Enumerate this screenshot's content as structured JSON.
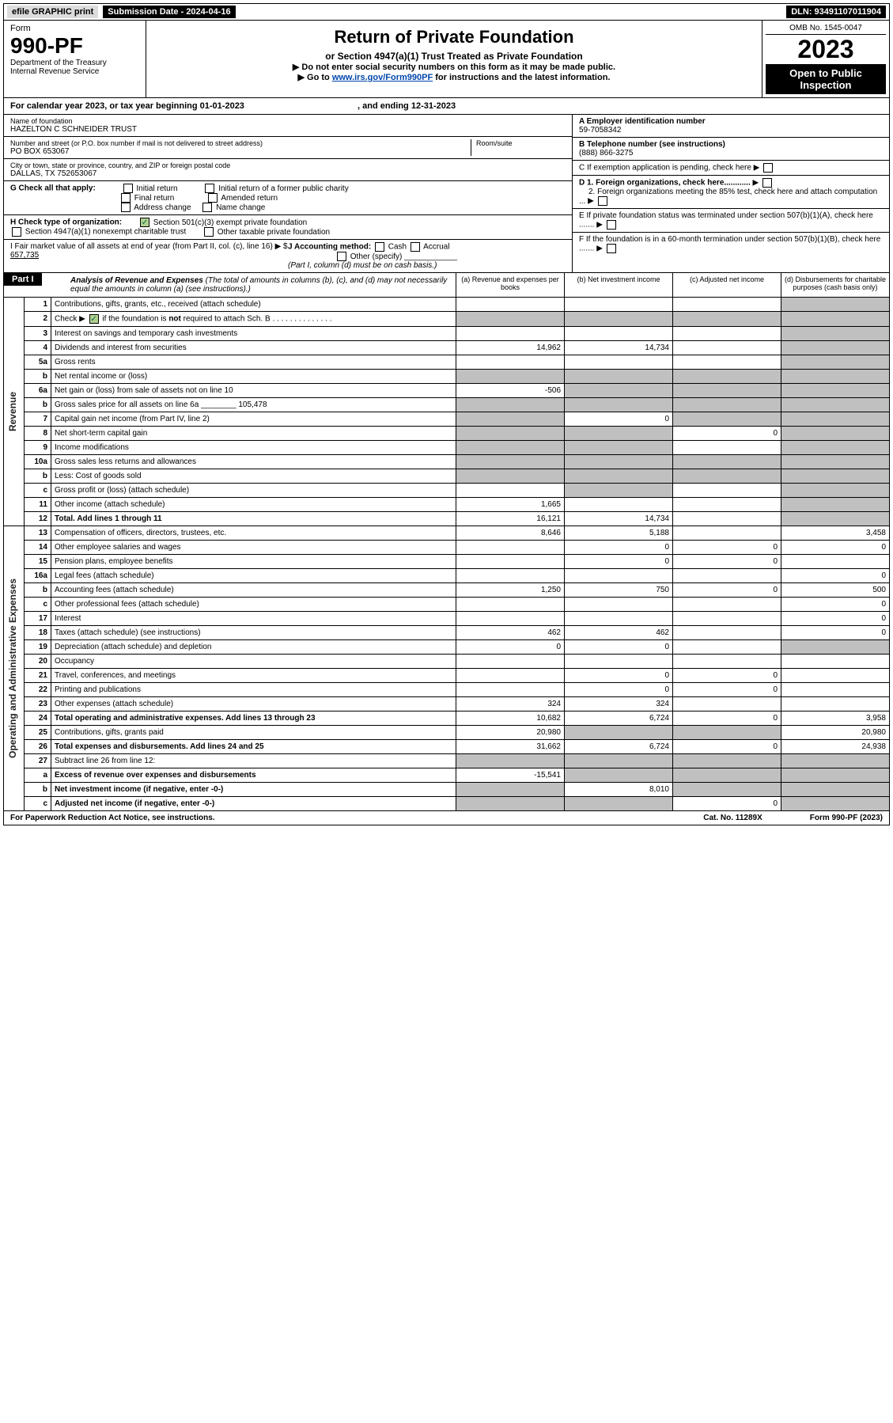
{
  "topbar": {
    "efile": "efile GRAPHIC print",
    "submission": "Submission Date - 2024-04-16",
    "dln": "DLN: 93491107011904"
  },
  "header": {
    "form_word": "Form",
    "form_num": "990-PF",
    "dept1": "Department of the Treasury",
    "dept2": "Internal Revenue Service",
    "title": "Return of Private Foundation",
    "subtitle": "or Section 4947(a)(1) Trust Treated as Private Foundation",
    "note1": "▶ Do not enter social security numbers on this form as it may be made public.",
    "note2_pre": "▶ Go to ",
    "note2_link": "www.irs.gov/Form990PF",
    "note2_post": " for instructions and the latest information.",
    "omb": "OMB No. 1545-0047",
    "year": "2023",
    "open": "Open to Public Inspection"
  },
  "calendar": {
    "pre": "For calendar year 2023, or tax year beginning ",
    "begin": "01-01-2023",
    "mid": " , and ending ",
    "end": "12-31-2023"
  },
  "id": {
    "name_label": "Name of foundation",
    "name": "HAZELTON C SCHNEIDER TRUST",
    "addr_label": "Number and street (or P.O. box number if mail is not delivered to street address)",
    "addr": "PO BOX 653067",
    "room_label": "Room/suite",
    "city_label": "City or town, state or province, country, and ZIP or foreign postal code",
    "city": "DALLAS, TX  752653067",
    "a_label": "A Employer identification number",
    "a_val": "59-7058342",
    "b_label": "B Telephone number (see instructions)",
    "b_val": "(888) 866-3275",
    "c_label": "C If exemption application is pending, check here",
    "d1": "D 1. Foreign organizations, check here............",
    "d2": "2. Foreign organizations meeting the 85% test, check here and attach computation ...",
    "e": "E  If private foundation status was terminated under section 507(b)(1)(A), check here .......",
    "f": "F  If the foundation is in a 60-month termination under section 507(b)(1)(B), check here .......",
    "g_label": "G Check all that apply:",
    "g_opts": [
      "Initial return",
      "Final return",
      "Address change",
      "Initial return of a former public charity",
      "Amended return",
      "Name change"
    ],
    "h_label": "H Check type of organization:",
    "h1": "Section 501(c)(3) exempt private foundation",
    "h2": "Section 4947(a)(1) nonexempt charitable trust",
    "h3": "Other taxable private foundation",
    "i_label": "I Fair market value of all assets at end of year (from Part II, col. (c), line 16) ▶ $",
    "i_val": "657,735",
    "j_label": "J Accounting method:",
    "j_opts": [
      "Cash",
      "Accrual"
    ],
    "j_other": "Other (specify)",
    "j_note": "(Part I, column (d) must be on cash basis.)"
  },
  "part1": {
    "label": "Part I",
    "title": "Analysis of Revenue and Expenses",
    "paren": "(The total of amounts in columns (b), (c), and (d) may not necessarily equal the amounts in column (a) (see instructions).)",
    "cols": {
      "a": "(a)  Revenue and expenses per books",
      "b": "(b)  Net investment income",
      "c": "(c)  Adjusted net income",
      "d": "(d)  Disbursements for charitable purposes (cash basis only)"
    },
    "side_rev": "Revenue",
    "side_exp": "Operating and Administrative Expenses",
    "rows": [
      {
        "ln": "1",
        "lbl": "Contributions, gifts, grants, etc., received (attach schedule)",
        "a": "",
        "b": "",
        "c": "",
        "d": "shade"
      },
      {
        "ln": "2",
        "lbl": "Check ▶ [x] if the foundation is not required to attach Sch. B",
        "a": "shade",
        "b": "shade",
        "c": "shade",
        "d": "shade",
        "special": "check"
      },
      {
        "ln": "3",
        "lbl": "Interest on savings and temporary cash investments",
        "a": "",
        "b": "",
        "c": "",
        "d": "shade"
      },
      {
        "ln": "4",
        "lbl": "Dividends and interest from securities",
        "a": "14,962",
        "b": "14,734",
        "c": "",
        "d": "shade"
      },
      {
        "ln": "5a",
        "lbl": "Gross rents",
        "a": "",
        "b": "",
        "c": "",
        "d": "shade"
      },
      {
        "ln": "b",
        "lbl": "Net rental income or (loss)",
        "a": "shade",
        "b": "shade",
        "c": "shade",
        "d": "shade"
      },
      {
        "ln": "6a",
        "lbl": "Net gain or (loss) from sale of assets not on line 10",
        "a": "-506",
        "b": "shade",
        "c": "shade",
        "d": "shade"
      },
      {
        "ln": "b",
        "lbl": "Gross sales price for all assets on line 6a ________ 105,478",
        "a": "shade",
        "b": "shade",
        "c": "shade",
        "d": "shade"
      },
      {
        "ln": "7",
        "lbl": "Capital gain net income (from Part IV, line 2)",
        "a": "shade",
        "b": "0",
        "c": "shade",
        "d": "shade"
      },
      {
        "ln": "8",
        "lbl": "Net short-term capital gain",
        "a": "shade",
        "b": "shade",
        "c": "0",
        "d": "shade"
      },
      {
        "ln": "9",
        "lbl": "Income modifications",
        "a": "shade",
        "b": "shade",
        "c": "",
        "d": "shade"
      },
      {
        "ln": "10a",
        "lbl": "Gross sales less returns and allowances",
        "a": "shade",
        "b": "shade",
        "c": "shade",
        "d": "shade"
      },
      {
        "ln": "b",
        "lbl": "Less: Cost of goods sold",
        "a": "shade",
        "b": "shade",
        "c": "shade",
        "d": "shade"
      },
      {
        "ln": "c",
        "lbl": "Gross profit or (loss) (attach schedule)",
        "a": "",
        "b": "shade",
        "c": "",
        "d": "shade"
      },
      {
        "ln": "11",
        "lbl": "Other income (attach schedule)",
        "a": "1,665",
        "b": "",
        "c": "",
        "d": "shade"
      },
      {
        "ln": "12",
        "lbl": "Total. Add lines 1 through 11",
        "a": "16,121",
        "b": "14,734",
        "c": "",
        "d": "shade",
        "bold": true
      },
      {
        "ln": "13",
        "lbl": "Compensation of officers, directors, trustees, etc.",
        "a": "8,646",
        "b": "5,188",
        "c": "",
        "d": "3,458"
      },
      {
        "ln": "14",
        "lbl": "Other employee salaries and wages",
        "a": "",
        "b": "0",
        "c": "0",
        "d": "0"
      },
      {
        "ln": "15",
        "lbl": "Pension plans, employee benefits",
        "a": "",
        "b": "0",
        "c": "0",
        "d": ""
      },
      {
        "ln": "16a",
        "lbl": "Legal fees (attach schedule)",
        "a": "",
        "b": "",
        "c": "",
        "d": "0"
      },
      {
        "ln": "b",
        "lbl": "Accounting fees (attach schedule)",
        "a": "1,250",
        "b": "750",
        "c": "0",
        "d": "500"
      },
      {
        "ln": "c",
        "lbl": "Other professional fees (attach schedule)",
        "a": "",
        "b": "",
        "c": "",
        "d": "0"
      },
      {
        "ln": "17",
        "lbl": "Interest",
        "a": "",
        "b": "",
        "c": "",
        "d": "0"
      },
      {
        "ln": "18",
        "lbl": "Taxes (attach schedule) (see instructions)",
        "a": "462",
        "b": "462",
        "c": "",
        "d": "0"
      },
      {
        "ln": "19",
        "lbl": "Depreciation (attach schedule) and depletion",
        "a": "0",
        "b": "0",
        "c": "",
        "d": "shade"
      },
      {
        "ln": "20",
        "lbl": "Occupancy",
        "a": "",
        "b": "",
        "c": "",
        "d": ""
      },
      {
        "ln": "21",
        "lbl": "Travel, conferences, and meetings",
        "a": "",
        "b": "0",
        "c": "0",
        "d": ""
      },
      {
        "ln": "22",
        "lbl": "Printing and publications",
        "a": "",
        "b": "0",
        "c": "0",
        "d": ""
      },
      {
        "ln": "23",
        "lbl": "Other expenses (attach schedule)",
        "a": "324",
        "b": "324",
        "c": "",
        "d": ""
      },
      {
        "ln": "24",
        "lbl": "Total operating and administrative expenses. Add lines 13 through 23",
        "a": "10,682",
        "b": "6,724",
        "c": "0",
        "d": "3,958",
        "bold": true
      },
      {
        "ln": "25",
        "lbl": "Contributions, gifts, grants paid",
        "a": "20,980",
        "b": "shade",
        "c": "shade",
        "d": "20,980"
      },
      {
        "ln": "26",
        "lbl": "Total expenses and disbursements. Add lines 24 and 25",
        "a": "31,662",
        "b": "6,724",
        "c": "0",
        "d": "24,938",
        "bold": true
      },
      {
        "ln": "27",
        "lbl": "Subtract line 26 from line 12:",
        "a": "shade",
        "b": "shade",
        "c": "shade",
        "d": "shade"
      },
      {
        "ln": "a",
        "lbl": "Excess of revenue over expenses and disbursements",
        "a": "-15,541",
        "b": "shade",
        "c": "shade",
        "d": "shade",
        "bold": true
      },
      {
        "ln": "b",
        "lbl": "Net investment income (if negative, enter -0-)",
        "a": "shade",
        "b": "8,010",
        "c": "shade",
        "d": "shade",
        "bold": true
      },
      {
        "ln": "c",
        "lbl": "Adjusted net income (if negative, enter -0-)",
        "a": "shade",
        "b": "shade",
        "c": "0",
        "d": "shade",
        "bold": true
      }
    ]
  },
  "footer": {
    "f1": "For Paperwork Reduction Act Notice, see instructions.",
    "f2": "Cat. No. 11289X",
    "f3": "Form 990-PF (2023)"
  },
  "colors": {
    "shade": "#c0c0c0",
    "check_bg": "#b0d090"
  }
}
